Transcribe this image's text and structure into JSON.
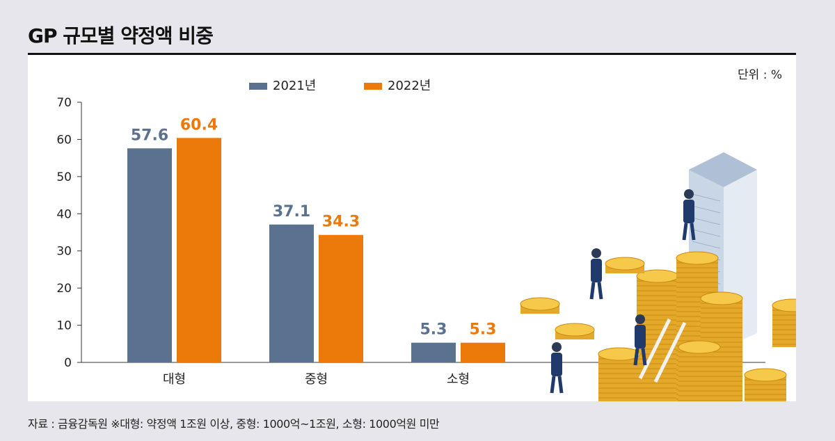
{
  "title": "GP 규모별 약정액 비중",
  "unit_label": "단위 : %",
  "footnote": "자료 : 금융감독원  ※대형: 약정액 1조원 이상, 중형: 1000억~1조원, 소형: 1000억원 미만",
  "colors": {
    "series_2021": "#5a7190",
    "series_2022": "#ec7a0b",
    "background": "#e7e6ec",
    "panel": "#ffffff"
  },
  "chart_data": {
    "type": "bar",
    "categories": [
      "대형",
      "중형",
      "소형"
    ],
    "series": [
      {
        "name": "2021년",
        "values": [
          57.6,
          37.1,
          5.3
        ]
      },
      {
        "name": "2022년",
        "values": [
          60.4,
          34.3,
          5.3
        ]
      }
    ],
    "data_labels": [
      [
        "57.6",
        "37.1",
        "5.3"
      ],
      [
        "60.4",
        "34.3",
        "5.3"
      ]
    ],
    "yticks": [
      "0",
      "10",
      "20",
      "30",
      "40",
      "50",
      "60",
      "70"
    ],
    "ylim": [
      0,
      70
    ],
    "grid": false,
    "legend_position": "top-center"
  },
  "illustration_icon": "business-people-gold-coins-building-illustration"
}
